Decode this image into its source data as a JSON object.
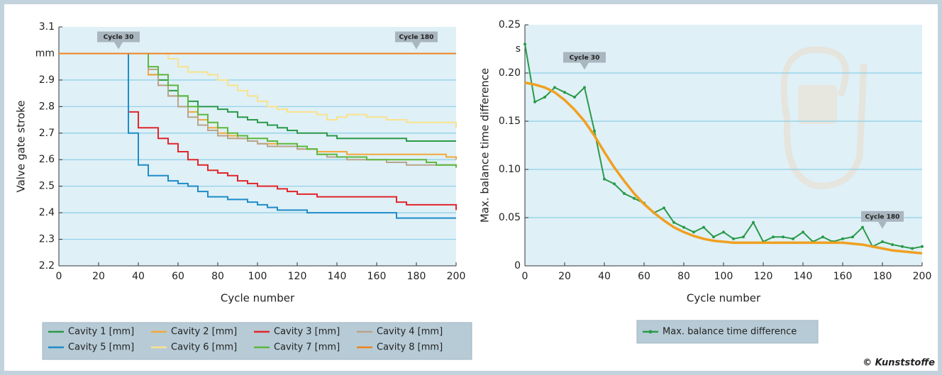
{
  "chart_data": [
    {
      "type": "line",
      "ylabel": "Valve gate stroke",
      "xlabel": "Cycle number",
      "xlim": [
        0,
        200
      ],
      "xticks": [
        0,
        20,
        40,
        60,
        80,
        100,
        120,
        140,
        160,
        180,
        200
      ],
      "ylim": [
        2.2,
        3.1
      ],
      "yticks": [
        2.2,
        2.3,
        2.4,
        2.5,
        2.6,
        2.7,
        2.8,
        2.9,
        {
          "value": 3.0,
          "label": "mm"
        },
        3.1
      ],
      "grid": true,
      "step": true,
      "annotations": [
        {
          "text": "Cycle 30",
          "x": 30,
          "y": 3.04
        },
        {
          "text": "Cycle 180",
          "x": 180,
          "y": 3.04
        }
      ],
      "x": [
        0,
        5,
        10,
        15,
        20,
        25,
        30,
        35,
        40,
        45,
        50,
        55,
        60,
        65,
        70,
        75,
        80,
        85,
        90,
        95,
        100,
        105,
        110,
        115,
        120,
        125,
        130,
        135,
        140,
        145,
        150,
        155,
        160,
        165,
        170,
        175,
        180,
        185,
        190,
        195,
        200
      ],
      "series": [
        {
          "name": "Cavity 1 [mm]",
          "color": "#2a9a48",
          "values": [
            3.0,
            3.0,
            3.0,
            3.0,
            3.0,
            3.0,
            3.0,
            3.0,
            3.0,
            2.92,
            2.9,
            2.86,
            2.84,
            2.82,
            2.8,
            2.8,
            2.79,
            2.78,
            2.76,
            2.75,
            2.74,
            2.73,
            2.72,
            2.71,
            2.7,
            2.7,
            2.7,
            2.69,
            2.68,
            2.68,
            2.68,
            2.68,
            2.68,
            2.68,
            2.68,
            2.67,
            2.67,
            2.67,
            2.67,
            2.67,
            2.67
          ]
        },
        {
          "name": "Cavity 2 [mm]",
          "color": "#f4a73a",
          "values": [
            3.0,
            3.0,
            3.0,
            3.0,
            3.0,
            3.0,
            3.0,
            3.0,
            3.0,
            2.92,
            2.88,
            2.84,
            2.8,
            2.78,
            2.75,
            2.72,
            2.7,
            2.69,
            2.68,
            2.67,
            2.66,
            2.66,
            2.65,
            2.65,
            2.64,
            2.64,
            2.63,
            2.63,
            2.63,
            2.62,
            2.62,
            2.62,
            2.62,
            2.62,
            2.62,
            2.62,
            2.62,
            2.62,
            2.62,
            2.61,
            2.6
          ]
        },
        {
          "name": "Cavity 3 [mm]",
          "color": "#e0262b",
          "values": [
            3.0,
            3.0,
            3.0,
            3.0,
            3.0,
            3.0,
            3.0,
            2.78,
            2.72,
            2.72,
            2.68,
            2.66,
            2.63,
            2.6,
            2.58,
            2.56,
            2.55,
            2.54,
            2.52,
            2.51,
            2.5,
            2.5,
            2.49,
            2.48,
            2.47,
            2.47,
            2.46,
            2.46,
            2.46,
            2.46,
            2.46,
            2.46,
            2.46,
            2.46,
            2.44,
            2.43,
            2.43,
            2.43,
            2.43,
            2.43,
            2.41
          ]
        },
        {
          "name": "Cavity  4 [mm]",
          "color": "#b8a48c",
          "values": [
            3.0,
            3.0,
            3.0,
            3.0,
            3.0,
            3.0,
            3.0,
            3.0,
            3.0,
            2.94,
            2.88,
            2.84,
            2.8,
            2.76,
            2.73,
            2.71,
            2.69,
            2.68,
            2.68,
            2.67,
            2.66,
            2.65,
            2.65,
            2.65,
            2.64,
            2.64,
            2.62,
            2.61,
            2.61,
            2.6,
            2.6,
            2.6,
            2.6,
            2.59,
            2.59,
            2.58,
            2.58,
            2.58,
            2.58,
            2.58,
            2.58
          ]
        },
        {
          "name": "Cavity 5 [mm]",
          "color": "#1f8cc8",
          "values": [
            3.0,
            3.0,
            3.0,
            3.0,
            3.0,
            3.0,
            3.0,
            2.7,
            2.58,
            2.54,
            2.54,
            2.52,
            2.51,
            2.5,
            2.48,
            2.46,
            2.46,
            2.45,
            2.45,
            2.44,
            2.43,
            2.42,
            2.41,
            2.41,
            2.41,
            2.4,
            2.4,
            2.4,
            2.4,
            2.4,
            2.4,
            2.4,
            2.4,
            2.4,
            2.38,
            2.38,
            2.38,
            2.38,
            2.38,
            2.38,
            2.38
          ]
        },
        {
          "name": "Cavity 6 [mm]",
          "color": "#f9e28c",
          "values": [
            3.0,
            3.0,
            3.0,
            3.0,
            3.0,
            3.0,
            3.0,
            3.0,
            3.0,
            3.0,
            3.0,
            2.98,
            2.95,
            2.93,
            2.93,
            2.92,
            2.9,
            2.88,
            2.86,
            2.84,
            2.82,
            2.8,
            2.79,
            2.78,
            2.78,
            2.78,
            2.77,
            2.75,
            2.76,
            2.77,
            2.77,
            2.76,
            2.76,
            2.75,
            2.75,
            2.74,
            2.74,
            2.74,
            2.74,
            2.74,
            2.72
          ]
        },
        {
          "name": "Cavity 7 [mm]",
          "color": "#5cb83c",
          "values": [
            3.0,
            3.0,
            3.0,
            3.0,
            3.0,
            3.0,
            3.0,
            3.0,
            3.0,
            2.95,
            2.92,
            2.88,
            2.84,
            2.8,
            2.77,
            2.74,
            2.72,
            2.7,
            2.69,
            2.68,
            2.68,
            2.67,
            2.66,
            2.66,
            2.65,
            2.64,
            2.62,
            2.62,
            2.61,
            2.61,
            2.61,
            2.6,
            2.6,
            2.6,
            2.6,
            2.6,
            2.6,
            2.59,
            2.58,
            2.58,
            2.57
          ]
        },
        {
          "name": "Cavity  8 [mm]",
          "color": "#ee8420",
          "values": [
            3.0,
            3.0,
            3.0,
            3.0,
            3.0,
            3.0,
            3.0,
            3.0,
            3.0,
            3.0,
            3.0,
            3.0,
            3.0,
            3.0,
            3.0,
            3.0,
            3.0,
            3.0,
            3.0,
            3.0,
            3.0,
            3.0,
            3.0,
            3.0,
            3.0,
            3.0,
            3.0,
            3.0,
            3.0,
            3.0,
            3.0,
            3.0,
            3.0,
            3.0,
            3.0,
            3.0,
            3.0,
            3.0,
            3.0,
            3.0,
            3.0
          ]
        }
      ]
    },
    {
      "type": "line",
      "ylabel": "Max. balance time difference",
      "xlabel": "Cycle number",
      "y_unit": "s",
      "xlim": [
        0,
        200
      ],
      "xticks": [
        0,
        20,
        40,
        60,
        80,
        100,
        120,
        140,
        160,
        180,
        200
      ],
      "ylim": [
        0,
        0.25
      ],
      "yticks": [
        0,
        0.05,
        {
          "value": 0.1,
          "label": "0.10"
        },
        0.15,
        {
          "value": 0.2,
          "label": "0.20"
        },
        0.25
      ],
      "grid": true,
      "step": false,
      "annotations": [
        {
          "text": "Cycle 30",
          "x": 30,
          "y": 0.21
        },
        {
          "text": "Cycle 180",
          "x": 180,
          "y": 0.045
        }
      ],
      "x": [
        0,
        5,
        10,
        15,
        20,
        25,
        30,
        35,
        40,
        45,
        50,
        55,
        60,
        65,
        70,
        75,
        80,
        85,
        90,
        95,
        100,
        105,
        110,
        115,
        120,
        125,
        130,
        135,
        140,
        145,
        150,
        155,
        160,
        165,
        170,
        175,
        180,
        185,
        190,
        195,
        200
      ],
      "series": [
        {
          "name": "Max. balance time difference",
          "color": "#2a9a48",
          "markers": true,
          "values": [
            0.23,
            0.17,
            0.175,
            0.185,
            0.18,
            0.175,
            0.185,
            0.14,
            0.09,
            0.085,
            0.075,
            0.07,
            0.065,
            0.055,
            0.06,
            0.045,
            0.04,
            0.035,
            0.04,
            0.03,
            0.035,
            0.028,
            0.03,
            0.045,
            0.025,
            0.03,
            0.03,
            0.028,
            0.035,
            0.025,
            0.03,
            0.025,
            0.028,
            0.03,
            0.04,
            0.02,
            0.025,
            0.022,
            0.02,
            0.018,
            0.02
          ]
        },
        {
          "color": "#f0a020",
          "values": [
            0.19,
            0.188,
            0.185,
            0.18,
            0.172,
            0.162,
            0.15,
            0.135,
            0.118,
            0.102,
            0.088,
            0.075,
            0.064,
            0.055,
            0.047,
            0.04,
            0.035,
            0.031,
            0.028,
            0.026,
            0.025,
            0.024,
            0.024,
            0.024,
            0.024,
            0.024,
            0.024,
            0.024,
            0.024,
            0.024,
            0.024,
            0.024,
            0.024,
            0.023,
            0.022,
            0.02,
            0.018,
            0.016,
            0.015,
            0.014,
            0.013
          ]
        }
      ]
    }
  ],
  "credit": "© Kunststoffe"
}
